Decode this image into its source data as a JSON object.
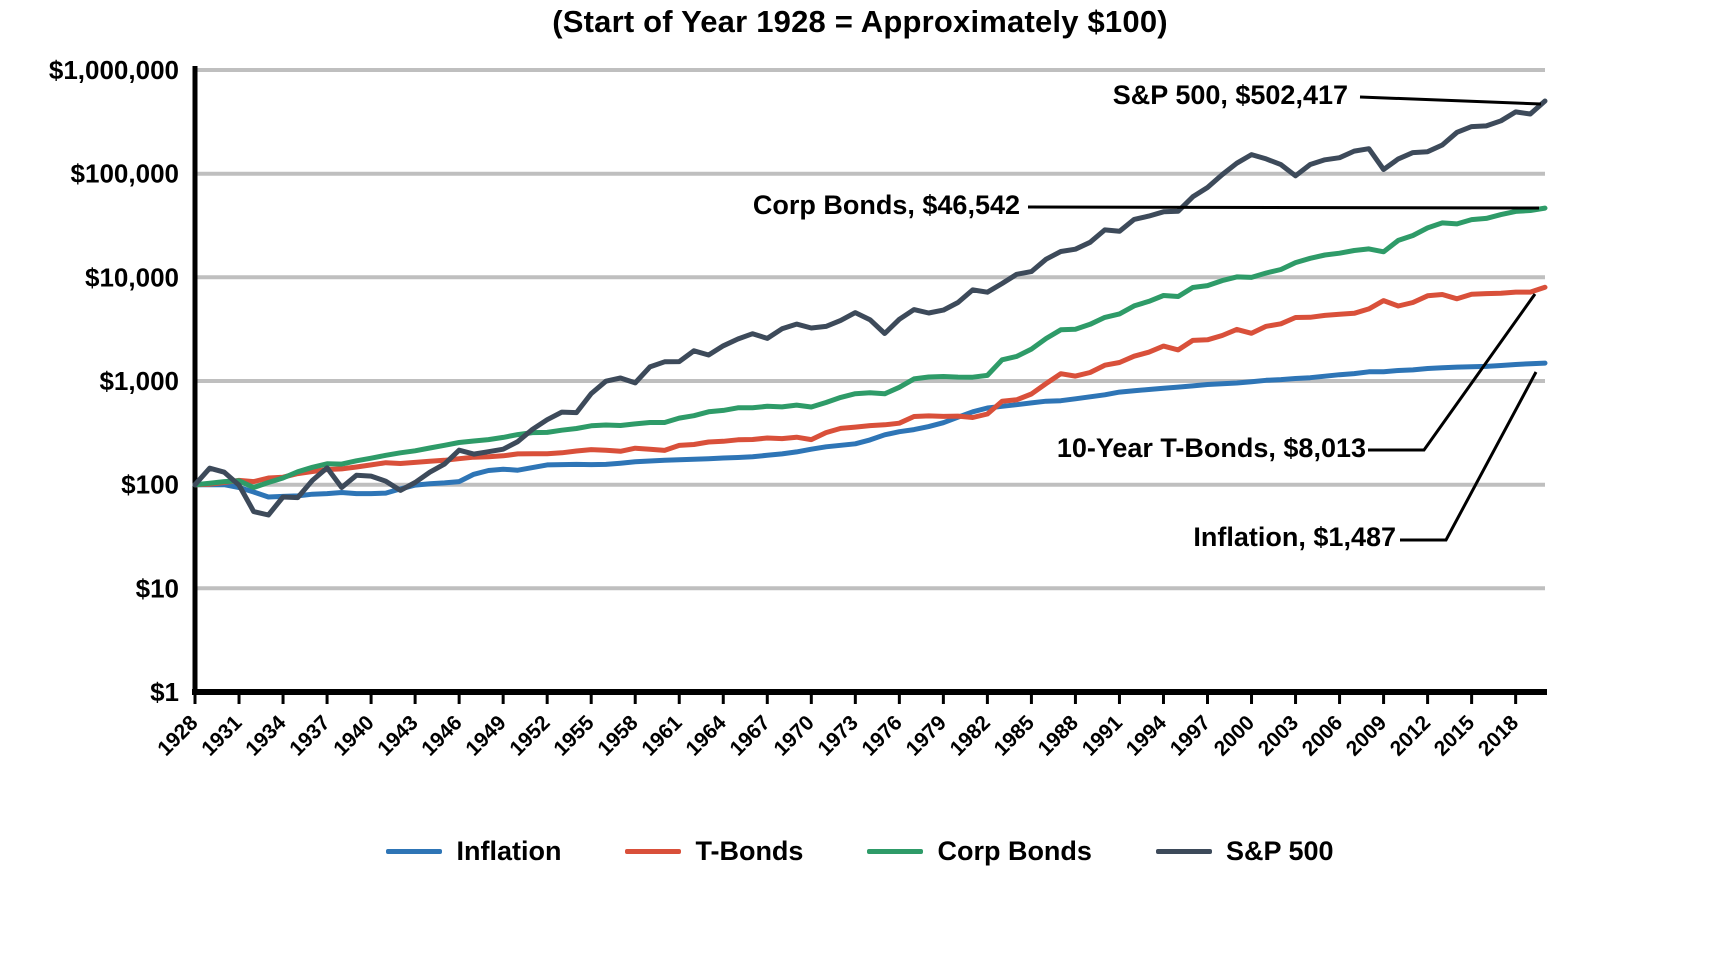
{
  "title": "(Start of Year 1928 = Approximately $100)",
  "annotations": {
    "sp500": {
      "label": "S&P 500, $502,417"
    },
    "corp_bonds": {
      "label": "Corp Bonds, $46,542"
    },
    "t_bonds": {
      "label": "10-Year T-Bonds, $8,013"
    },
    "inflation": {
      "label": "Inflation, $1,487"
    }
  },
  "chart_data": {
    "type": "line",
    "title": "(Start of Year 1928 = Approximately $100)",
    "y_scale": "log",
    "ylim": [
      1,
      1000000
    ],
    "y_tick_labels": [
      "$1",
      "$10",
      "$100",
      "$1,000",
      "$10,000",
      "$100,000",
      "$1,000,000"
    ],
    "y_tick_values": [
      1,
      10,
      100,
      1000,
      10000,
      100000,
      1000000
    ],
    "x_range": [
      1928,
      2020
    ],
    "x_tick_interval": 3,
    "x_tick_labels": [
      "1928",
      "1931",
      "1934",
      "1937",
      "1940",
      "1943",
      "1946",
      "1949",
      "1952",
      "1955",
      "1958",
      "1961",
      "1964",
      "1967",
      "1970",
      "1973",
      "1976",
      "1979",
      "1982",
      "1985",
      "1988",
      "1991",
      "1994",
      "1997",
      "2000",
      "2003",
      "2006",
      "2009",
      "2012",
      "2015",
      "2018"
    ],
    "grid": "horizontal",
    "legend_position": "bottom",
    "series": [
      {
        "name": "Inflation",
        "color": "#2E75B6",
        "end_label": "Inflation, $1,487",
        "end_value": 1487,
        "values": [
          100,
          100,
          100,
          94,
          85,
          76,
          77,
          78,
          81,
          82,
          84,
          82,
          82,
          83,
          91,
          99,
          102,
          104,
          107,
          126,
          137,
          141,
          138,
          146,
          155,
          156,
          157,
          156,
          157,
          161,
          166,
          169,
          172,
          174,
          176,
          178,
          181,
          183,
          186,
          192,
          198,
          207,
          220,
          232,
          240,
          248,
          270,
          303,
          324,
          340,
          363,
          396,
          448,
          504,
          549,
          570,
          591,
          615,
          638,
          645,
          674,
          704,
          736,
          781,
          805,
          828,
          851,
          874,
          896,
          926,
          941,
          957,
          983,
          1016,
          1032,
          1057,
          1077,
          1112,
          1150,
          1179,
          1227,
          1228,
          1262,
          1281,
          1319,
          1342,
          1362,
          1373,
          1383,
          1412,
          1442,
          1469,
          1487
        ]
      },
      {
        "name": "T-Bonds",
        "color": "#D9503A",
        "end_label": "10-Year T-Bonds, $8,013",
        "end_value": 8013,
        "values": [
          100,
          101,
          105,
          110,
          107,
          116,
          118,
          128,
          134,
          140,
          142,
          148,
          155,
          163,
          160,
          164,
          168,
          172,
          178,
          184,
          186,
          190,
          198,
          199,
          199,
          203,
          211,
          218,
          215,
          210,
          225,
          220,
          214,
          239,
          244,
          258,
          262,
          271,
          273,
          282,
          278,
          287,
          272,
          318,
          349,
          359,
          371,
          378,
          392,
          455,
          461,
          456,
          459,
          445,
          481,
          638,
          659,
          750,
          944,
          1175,
          1116,
          1208,
          1421,
          1509,
          1735,
          1897,
          2170,
          1996,
          2464,
          2499,
          2747,
          3149,
          2887,
          3369,
          3561,
          4097,
          4112,
          4290,
          4414,
          4501,
          4956,
          5961,
          5292,
          5724,
          6632,
          6829,
          6211,
          6875,
          6965,
          7009,
          7205,
          7205,
          8013
        ]
      },
      {
        "name": "Corp Bonds",
        "color": "#2E9B68",
        "end_label": "Corp Bonds, $46,542",
        "end_value": 46542,
        "values": [
          100,
          103,
          107,
          109,
          94,
          105,
          116,
          133,
          147,
          159,
          158,
          170,
          180,
          192,
          203,
          212,
          226,
          240,
          255,
          264,
          272,
          286,
          304,
          318,
          319,
          335,
          348,
          370,
          376,
          372,
          386,
          398,
          398,
          439,
          463,
          504,
          521,
          551,
          553,
          570,
          562,
          586,
          561,
          620,
          695,
          754,
          770,
          753,
          870,
          1047,
          1094,
          1104,
          1090,
          1089,
          1133,
          1603,
          1727,
          2029,
          2572,
          3121,
          3150,
          3523,
          4109,
          4437,
          5302,
          5864,
          6676,
          6536,
          7982,
          8325,
          9296,
          10096,
          9994,
          11003,
          11899,
          13869,
          15251,
          16418,
          17083,
          18129,
          18816,
          17641,
          22700,
          25325,
          29952,
          33520,
          32779,
          36073,
          37038,
          40301,
          43210,
          44120,
          46542
        ]
      },
      {
        "name": "S&P 500",
        "color": "#3D4A5A",
        "end_label": "S&P 500, $502,417",
        "end_value": 502417,
        "values": [
          100,
          144,
          132,
          99,
          55,
          51,
          76,
          75,
          110,
          145,
          94,
          123,
          121,
          108,
          88,
          105,
          132,
          158,
          215,
          197,
          208,
          220,
          260,
          342,
          423,
          501,
          496,
          756,
          995,
          1069,
          958,
          1368,
          1532,
          1538,
          1954,
          1783,
          2186,
          2544,
          2862,
          2576,
          3189,
          3541,
          3246,
          3361,
          3842,
          4567,
          3905,
          2875,
          3941,
          4881,
          4531,
          4825,
          5717,
          7571,
          7193,
          8724,
          10688,
          11356,
          14950,
          17745,
          18671,
          21775,
          28661,
          27772,
          36221,
          38958,
          42900,
          43458,
          59796,
          73512,
          98034,
          126053,
          152649,
          138747,
          122279,
          95269,
          122604,
          135968,
          142617,
          165135,
          174210,
          109763,
          138820,
          159720,
          163025,
          189153,
          250401,
          284706,
          288692,
          323299,
          393941,
          376682,
          502417
        ]
      }
    ]
  }
}
